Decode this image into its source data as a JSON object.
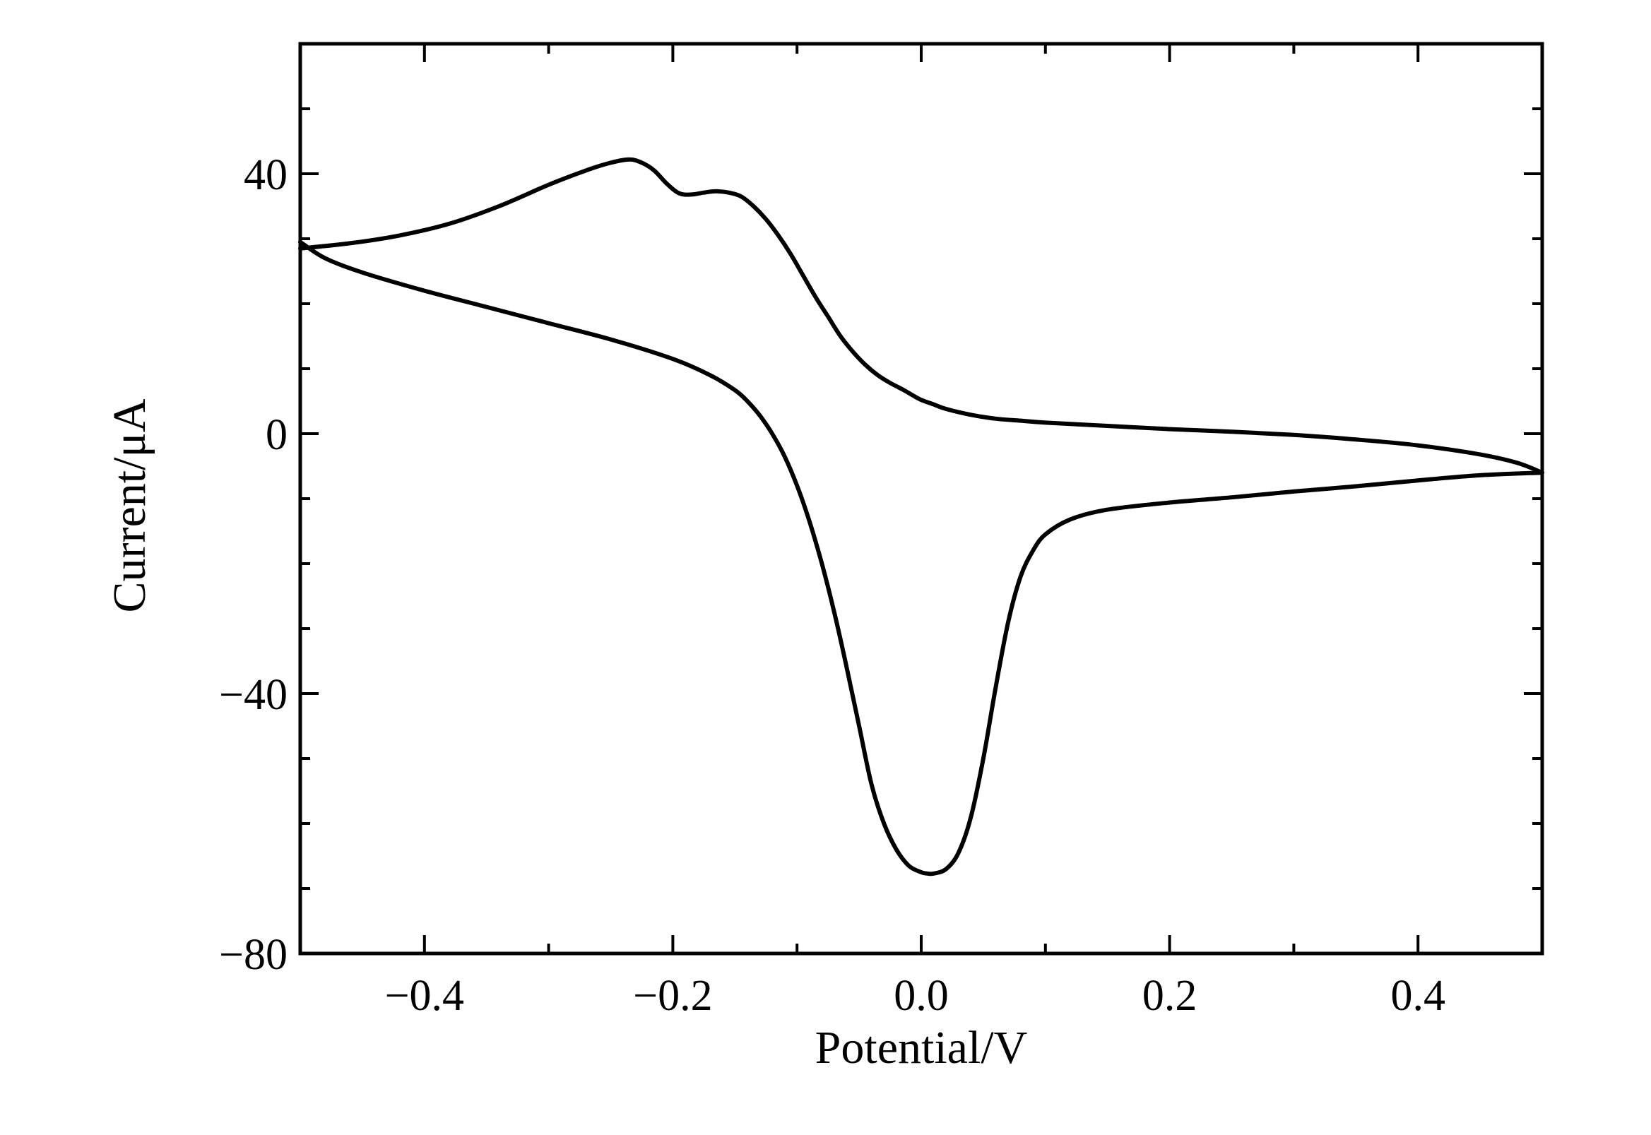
{
  "chart_data": {
    "type": "line",
    "title": "",
    "xlabel": "Potential/V",
    "ylabel": "Current/μA",
    "xlim": [
      -0.5,
      0.5
    ],
    "ylim": [
      -80,
      60
    ],
    "x_ticks": [
      -0.4,
      -0.2,
      0.0,
      0.2,
      0.4
    ],
    "x_tick_labels": [
      "−0.4",
      "−0.2",
      "0.0",
      "0.2",
      "0.4"
    ],
    "x_minor_ticks": [
      -0.3,
      -0.1,
      0.1,
      0.3
    ],
    "y_ticks": [
      -80,
      -40,
      0,
      40
    ],
    "y_tick_labels": [
      "−80",
      "−40",
      "0",
      "40"
    ],
    "y_minor_ticks": [
      -70,
      -60,
      -50,
      -30,
      -20,
      -10,
      10,
      20,
      30,
      50
    ],
    "grid": false,
    "legend": "none",
    "line_color": "#000000",
    "series": [
      {
        "x": [
          -0.5,
          -0.46,
          -0.42,
          -0.38,
          -0.34,
          -0.3,
          -0.27,
          -0.25,
          -0.235,
          -0.225,
          -0.215,
          -0.205,
          -0.195,
          -0.185,
          -0.175,
          -0.165,
          -0.155,
          -0.145,
          -0.135,
          -0.125,
          -0.115,
          -0.105,
          -0.095,
          -0.085,
          -0.075,
          -0.065,
          -0.055,
          -0.045,
          -0.035,
          -0.025,
          -0.015,
          -0.005,
          0.0,
          0.01,
          0.02,
          0.04,
          0.06,
          0.08,
          0.1,
          0.15,
          0.2,
          0.25,
          0.3,
          0.35,
          0.4,
          0.45,
          0.48,
          0.5
        ],
        "y": [
          28.5,
          29.3,
          30.5,
          32.3,
          35,
          38.3,
          40.5,
          41.7,
          42.2,
          41.7,
          40.5,
          38.5,
          37,
          36.8,
          37.1,
          37.3,
          37.1,
          36.5,
          35,
          33,
          30.5,
          27.6,
          24.3,
          21,
          18,
          15,
          12.6,
          10.6,
          9,
          7.8,
          6.8,
          5.7,
          5.2,
          4.5,
          3.8,
          2.9,
          2.3,
          2,
          1.7,
          1.2,
          0.7,
          0.3,
          -0.2,
          -0.9,
          -1.8,
          -3.2,
          -4.5,
          -6
        ]
      },
      {
        "x": [
          0.5,
          0.45,
          0.4,
          0.35,
          0.3,
          0.25,
          0.2,
          0.15,
          0.12,
          0.1,
          0.09,
          0.08,
          0.07,
          0.06,
          0.05,
          0.04,
          0.03,
          0.02,
          0.01,
          0.005,
          0.0,
          -0.01,
          -0.02,
          -0.03,
          -0.04,
          -0.05,
          -0.06,
          -0.07,
          -0.08,
          -0.09,
          -0.1,
          -0.11,
          -0.12,
          -0.13,
          -0.14,
          -0.15,
          -0.17,
          -0.2,
          -0.25,
          -0.3,
          -0.35,
          -0.4,
          -0.45,
          -0.48,
          -0.5
        ],
        "y": [
          -6,
          -6.4,
          -7.2,
          -8.1,
          -8.9,
          -9.8,
          -10.6,
          -11.7,
          -13.2,
          -15.5,
          -18,
          -22,
          -29,
          -39,
          -50,
          -59,
          -64.5,
          -67,
          -67.7,
          -67.7,
          -67.5,
          -66.5,
          -64,
          -60,
          -54,
          -45,
          -36,
          -27.5,
          -20,
          -13.5,
          -8,
          -3.5,
          0,
          2.8,
          5,
          6.7,
          9,
          11.5,
          14.5,
          17,
          19.5,
          22,
          24.8,
          27,
          29.5
        ]
      }
    ]
  }
}
